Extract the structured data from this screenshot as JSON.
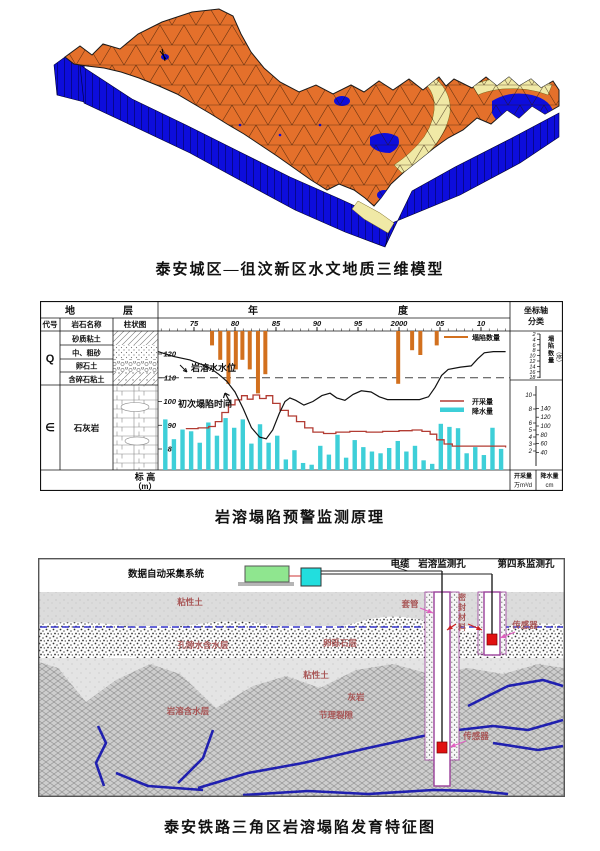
{
  "colors": {
    "surface_orange": "#e4702b",
    "side_blue": "#0d0ddc",
    "band_yellow": "#f0e9a6",
    "ink": "#111111",
    "bar_orange": "#d2701e",
    "bar_cyan": "#3ecfd8",
    "pump_red": "#b23b32",
    "label_red": "#a85555",
    "casing_purple": "#9a3f9a",
    "conduit_blue": "#2020b0",
    "sensor_red": "#e01010",
    "green_box": "#8fe68f",
    "cyan_box": "#22dede",
    "pink_arrow": "#e060c0"
  },
  "figure1": {
    "caption": "泰安城区—徂汶新区水文地质三维模型"
  },
  "figure2": {
    "caption": "岩溶塌陷预警监测原理",
    "strat_table": {
      "title_char1": "地",
      "title_char2": "层",
      "columns": [
        "代号",
        "岩石名称",
        "柱状图"
      ],
      "rows": [
        {
          "code": "Q",
          "lithologies": [
            "砂质粘土",
            "中、粗砂",
            "卵石土",
            "含碎石粘土"
          ]
        },
        {
          "code": "∈",
          "lithologies": [
            "石灰岩"
          ]
        }
      ],
      "elevation_label": "标 高",
      "elevation_unit": "（m）"
    },
    "right_panel": {
      "header_line1": "坐标轴",
      "header_line2": "分类",
      "collapse_axis_label": "塌陷数量",
      "collapse_axis_unit": "（处）",
      "collapse_ticks": [
        2,
        4,
        6,
        8,
        10,
        12,
        14,
        16,
        18
      ],
      "pump_ticks": [
        10,
        8,
        6,
        5,
        4,
        3,
        2
      ],
      "rain_ticks": [
        140,
        120,
        100,
        80,
        60,
        40
      ],
      "pump_unit_label": "开采量",
      "pump_unit": "万m³/d",
      "rain_unit_label": "降水量",
      "rain_unit": "cm"
    },
    "chart_data": {
      "type": "composite",
      "title": "岩溶塌陷预警监测原理",
      "x_axis": {
        "label_char1": "年",
        "label_char2": "度",
        "ticks": [
          "75",
          "80",
          "85",
          "90",
          "95",
          "2000",
          "05",
          "10"
        ],
        "tick_years": [
          1975,
          1980,
          1985,
          1990,
          1995,
          2000,
          2005,
          2010
        ],
        "range": [
          1971,
          2013
        ]
      },
      "elevation_ticks": [
        120,
        110,
        100,
        90,
        80
      ],
      "reference_elevation_dashed": 110,
      "annotations": [
        {
          "text": "岩溶水水位"
        },
        {
          "text": "初次塌陷时间"
        }
      ],
      "series": [
        {
          "name": "塌陷数量",
          "type": "bar",
          "unit": "处",
          "orientation": "down-from-top",
          "points": [
            [
              1977.2,
              3
            ],
            [
              1978.2,
              6
            ],
            [
              1979.2,
              11
            ],
            [
              1980.1,
              8
            ],
            [
              1980.9,
              6
            ],
            [
              1981.8,
              8
            ],
            [
              1982.8,
              13
            ],
            [
              1983.7,
              9
            ],
            [
              1999.9,
              11
            ],
            [
              2001.6,
              4
            ],
            [
              2002.6,
              5
            ],
            [
              2004.6,
              3
            ]
          ]
        },
        {
          "name": "岩溶水水位",
          "type": "line",
          "unit": "m",
          "points": [
            [
              1970.6,
              121
            ],
            [
              1972.5,
              119
            ],
            [
              1974.5,
              117.5
            ],
            [
              1976,
              115.5
            ],
            [
              1977,
              114
            ],
            [
              1978,
              111.5
            ],
            [
              1979,
              108.5
            ],
            [
              1980,
              104
            ],
            [
              1981,
              97
            ],
            [
              1982,
              89
            ],
            [
              1983,
              85
            ],
            [
              1983.8,
              84.3
            ],
            [
              1984.6,
              88
            ],
            [
              1985.4,
              95
            ],
            [
              1986.1,
              100
            ],
            [
              1986.7,
              101.5
            ],
            [
              1987.4,
              100.5
            ],
            [
              1988.4,
              98.5
            ],
            [
              1989.5,
              100
            ],
            [
              1990.6,
              102.5
            ],
            [
              1991.6,
              103.5
            ],
            [
              1992.4,
              101.5
            ],
            [
              1993.4,
              100.5
            ],
            [
              1994.4,
              103
            ],
            [
              1995.4,
              104.5
            ],
            [
              1996.6,
              104
            ],
            [
              1997.6,
              102
            ],
            [
              1998.6,
              100.8
            ],
            [
              2000,
              100.8
            ],
            [
              2002.5,
              100.8
            ],
            [
              2003.6,
              102
            ],
            [
              2004.4,
              106
            ],
            [
              2005.2,
              111
            ],
            [
              2006,
              113.5
            ],
            [
              2007.5,
              114.5
            ],
            [
              2008.8,
              115
            ],
            [
              2009.6,
              118
            ],
            [
              2010.4,
              120.5
            ],
            [
              2011.5,
              121
            ],
            [
              2013,
              121
            ]
          ]
        },
        {
          "name": "开采量",
          "type": "step-line",
          "unit": "万m³/d",
          "points": [
            [
              1974,
              5.2
            ],
            [
              1975.5,
              5.3
            ],
            [
              1976.8,
              5.5
            ],
            [
              1977.6,
              6.2
            ],
            [
              1978.4,
              7.5
            ],
            [
              1979.2,
              8.6
            ],
            [
              1980,
              9.3
            ],
            [
              1980.8,
              9.9
            ],
            [
              1981.5,
              9.4
            ],
            [
              1982.2,
              10
            ],
            [
              1983,
              9.5
            ],
            [
              1983.8,
              9.9
            ],
            [
              1984.6,
              8.8
            ],
            [
              1985.5,
              7.8
            ],
            [
              1986.5,
              7
            ],
            [
              1987.5,
              6.2
            ],
            [
              1988.5,
              5.3
            ],
            [
              1989.5,
              4.7
            ],
            [
              1990.8,
              4.5
            ],
            [
              1992.3,
              4.7
            ],
            [
              1994,
              4.8
            ],
            [
              1996,
              4.7
            ],
            [
              1998,
              4.8
            ],
            [
              2000,
              4.9
            ],
            [
              2001.6,
              5
            ],
            [
              2002.8,
              4.8
            ],
            [
              2003.8,
              4.4
            ],
            [
              2004.6,
              3.6
            ],
            [
              2005.5,
              3
            ],
            [
              2006.5,
              2.7
            ],
            [
              2013,
              2.5
            ]
          ]
        },
        {
          "name": "降水量",
          "type": "bar",
          "unit": "cm",
          "start_year": 1971.5,
          "year_step": 1.05,
          "values": [
            115,
            70,
            92,
            88,
            62,
            108,
            78,
            118,
            96,
            115,
            60,
            104,
            62,
            78,
            24,
            45,
            16,
            12,
            55,
            35,
            80,
            28,
            68,
            52,
            42,
            38,
            50,
            66,
            42,
            55,
            22,
            14,
            105,
            98,
            95,
            38,
            52,
            34,
            96,
            48
          ]
        }
      ]
    }
  },
  "figure3": {
    "caption": "泰安铁路三角区岩溶塌陷发育特征图",
    "labels": {
      "system": "数据自动采集系统",
      "cable": "电缆",
      "karst_hole": "岩溶监测孔",
      "quaternary_hole": "第四系监测孔",
      "casing": "套管",
      "seal": "密封材料",
      "clay_upper": "粘性土",
      "pore_aquifer": "孔隙水含水层",
      "gravel_layer": "卵砾石层",
      "clay_lower": "粘性土",
      "karst_aquifer": "岩溶含水层",
      "limestone": "灰岩",
      "joints": "节理裂隙",
      "sensor": "传感器"
    }
  }
}
